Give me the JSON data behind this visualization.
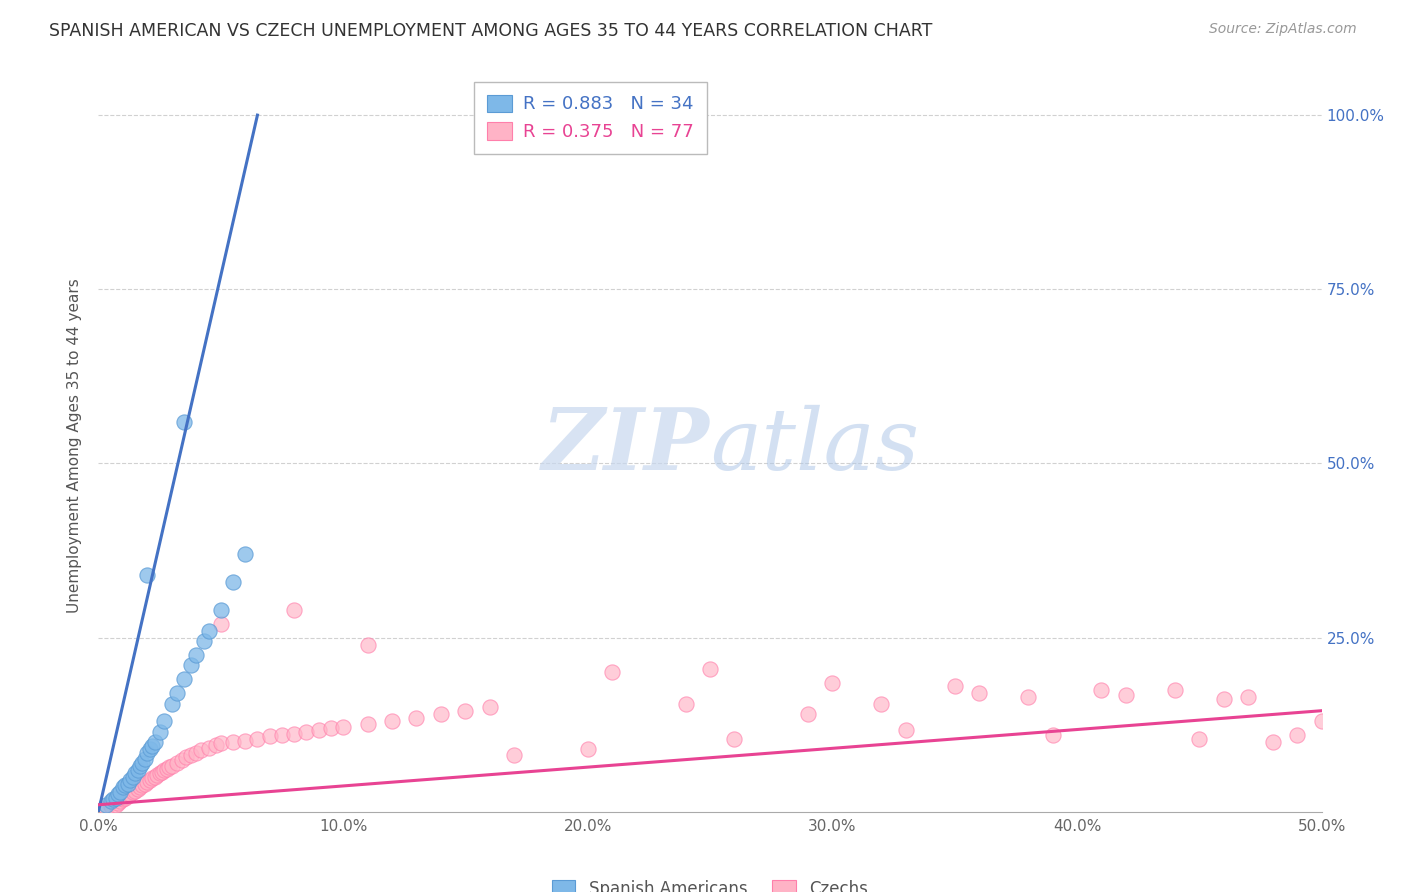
{
  "title": "SPANISH AMERICAN VS CZECH UNEMPLOYMENT AMONG AGES 35 TO 44 YEARS CORRELATION CHART",
  "source": "Source: ZipAtlas.com",
  "ylabel": "Unemployment Among Ages 35 to 44 years",
  "xlim": [
    0.0,
    0.5
  ],
  "ylim": [
    0.0,
    1.05
  ],
  "xtick_labels": [
    "0.0%",
    "10.0%",
    "20.0%",
    "30.0%",
    "40.0%",
    "50.0%"
  ],
  "xtick_values": [
    0.0,
    0.1,
    0.2,
    0.3,
    0.4,
    0.5
  ],
  "ytick_labels": [
    "25.0%",
    "50.0%",
    "75.0%",
    "100.0%"
  ],
  "ytick_values": [
    0.25,
    0.5,
    0.75,
    1.0
  ],
  "spanish_color": "#7EB8E8",
  "spanish_edge_color": "#5B9BD5",
  "czech_color": "#FFB3C6",
  "czech_edge_color": "#FF7FAB",
  "line_spanish_color": "#4472C4",
  "line_czech_color": "#E84393",
  "spanish_R": 0.883,
  "spanish_N": 34,
  "czech_R": 0.375,
  "czech_N": 77,
  "background_color": "#ffffff",
  "grid_color": "#cccccc",
  "ytick_color": "#4472C4",
  "xtick_color": "#666666",
  "spanish_scatter_x": [
    0.003,
    0.005,
    0.006,
    0.007,
    0.008,
    0.009,
    0.01,
    0.011,
    0.012,
    0.013,
    0.014,
    0.015,
    0.016,
    0.017,
    0.018,
    0.019,
    0.02,
    0.021,
    0.022,
    0.023,
    0.025,
    0.027,
    0.03,
    0.032,
    0.035,
    0.038,
    0.04,
    0.043,
    0.045,
    0.05,
    0.055,
    0.06,
    0.035,
    0.02
  ],
  "spanish_scatter_y": [
    0.01,
    0.015,
    0.018,
    0.02,
    0.025,
    0.028,
    0.035,
    0.038,
    0.04,
    0.045,
    0.05,
    0.055,
    0.06,
    0.065,
    0.07,
    0.075,
    0.085,
    0.09,
    0.095,
    0.1,
    0.115,
    0.13,
    0.155,
    0.17,
    0.19,
    0.21,
    0.225,
    0.245,
    0.26,
    0.29,
    0.33,
    0.37,
    0.56,
    0.34
  ],
  "czech_scatter_x": [
    0.003,
    0.005,
    0.007,
    0.008,
    0.009,
    0.01,
    0.011,
    0.012,
    0.013,
    0.014,
    0.015,
    0.016,
    0.017,
    0.018,
    0.019,
    0.02,
    0.021,
    0.022,
    0.023,
    0.024,
    0.025,
    0.026,
    0.027,
    0.028,
    0.029,
    0.03,
    0.032,
    0.034,
    0.036,
    0.038,
    0.04,
    0.042,
    0.045,
    0.048,
    0.05,
    0.055,
    0.06,
    0.065,
    0.07,
    0.075,
    0.08,
    0.085,
    0.09,
    0.095,
    0.1,
    0.11,
    0.12,
    0.13,
    0.14,
    0.15,
    0.05,
    0.08,
    0.11,
    0.16,
    0.24,
    0.29,
    0.32,
    0.36,
    0.38,
    0.41,
    0.44,
    0.47,
    0.5,
    0.21,
    0.25,
    0.3,
    0.35,
    0.42,
    0.46,
    0.49,
    0.17,
    0.2,
    0.26,
    0.33,
    0.39,
    0.45,
    0.48
  ],
  "czech_scatter_y": [
    0.005,
    0.008,
    0.01,
    0.012,
    0.015,
    0.018,
    0.02,
    0.022,
    0.025,
    0.028,
    0.03,
    0.032,
    0.035,
    0.038,
    0.04,
    0.042,
    0.045,
    0.048,
    0.05,
    0.052,
    0.055,
    0.057,
    0.06,
    0.062,
    0.064,
    0.066,
    0.07,
    0.074,
    0.078,
    0.082,
    0.085,
    0.088,
    0.092,
    0.096,
    0.098,
    0.1,
    0.102,
    0.105,
    0.108,
    0.11,
    0.112,
    0.115,
    0.118,
    0.12,
    0.122,
    0.126,
    0.13,
    0.135,
    0.14,
    0.145,
    0.27,
    0.29,
    0.24,
    0.15,
    0.155,
    0.14,
    0.155,
    0.17,
    0.165,
    0.175,
    0.175,
    0.165,
    0.13,
    0.2,
    0.205,
    0.185,
    0.18,
    0.168,
    0.162,
    0.11,
    0.082,
    0.09,
    0.105,
    0.118,
    0.11,
    0.105,
    0.1
  ],
  "spanish_line_x": [
    0.0,
    0.065
  ],
  "spanish_line_y": [
    0.0,
    1.0
  ],
  "czech_line_x": [
    0.0,
    0.5
  ],
  "czech_line_y": [
    0.01,
    0.145
  ]
}
